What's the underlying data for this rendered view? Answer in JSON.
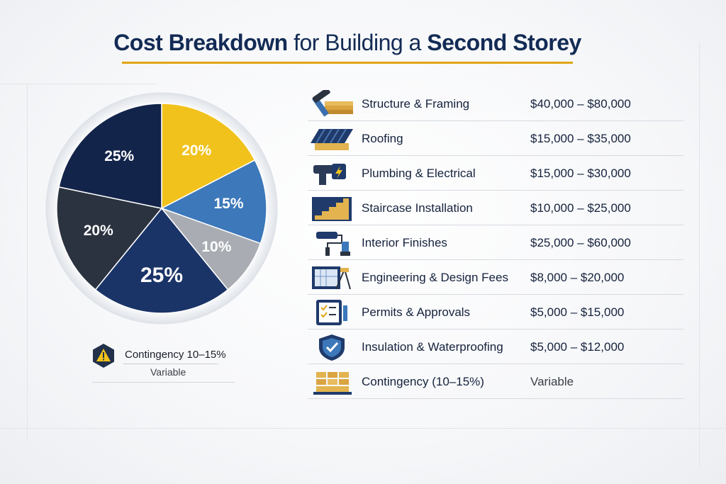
{
  "title": {
    "part1": "Cost Breakdown",
    "part2": " for Building a ",
    "part3": "Second Storey"
  },
  "colors": {
    "navy": "#1a3468",
    "dark_navy": "#13244a",
    "charcoal": "#2b3340",
    "yellow": "#f1c21b",
    "blue": "#3c78ba",
    "gray": "#a9adb3",
    "accent_rule": "#e0a514"
  },
  "chart_data": {
    "type": "pie",
    "slices": [
      {
        "label": "20%",
        "value": 20,
        "color": "#f1c21b"
      },
      {
        "label": "15%",
        "value": 15,
        "color": "#3c78ba"
      },
      {
        "label": "10%",
        "value": 10,
        "color": "#a9adb3"
      },
      {
        "label": "25%",
        "value": 25,
        "color": "#1a3468"
      },
      {
        "label": "20%",
        "value": 20,
        "color": "#2b3340"
      },
      {
        "label": "25%",
        "value": 25,
        "color": "#13244a"
      }
    ]
  },
  "contingency_note": {
    "title": "Contingency 10–15%",
    "subtitle": "Variable",
    "icon": "warning-icon"
  },
  "table": {
    "rows": [
      {
        "label": "Structure & Framing",
        "cost": "$40,000 – $80,000",
        "icon": "hammer-lumber-icon"
      },
      {
        "label": "Roofing",
        "cost": "$15,000 – $35,000",
        "icon": "roof-icon"
      },
      {
        "label": "Plumbing & Electrical",
        "cost": "$15,000 – $30,000",
        "icon": "pipe-electric-icon"
      },
      {
        "label": "Staircase Installation",
        "cost": "$10,000 – $25,000",
        "icon": "staircase-icon"
      },
      {
        "label": "Interior Finishes",
        "cost": "$25,000 – $60,000",
        "icon": "paint-roller-icon"
      },
      {
        "label": "Engineering & Design Fees",
        "cost": "$8,000 – $20,000",
        "icon": "blueprint-icon"
      },
      {
        "label": "Permits & Approvals",
        "cost": "$5,000 – $15,000",
        "icon": "checklist-icon"
      },
      {
        "label": "Insulation & Waterproofing",
        "cost": "$5,000 – $12,000",
        "icon": "shield-check-icon"
      },
      {
        "label": "Contingency (10–15%)",
        "cost": "Variable",
        "icon": "bricks-icon"
      }
    ]
  }
}
